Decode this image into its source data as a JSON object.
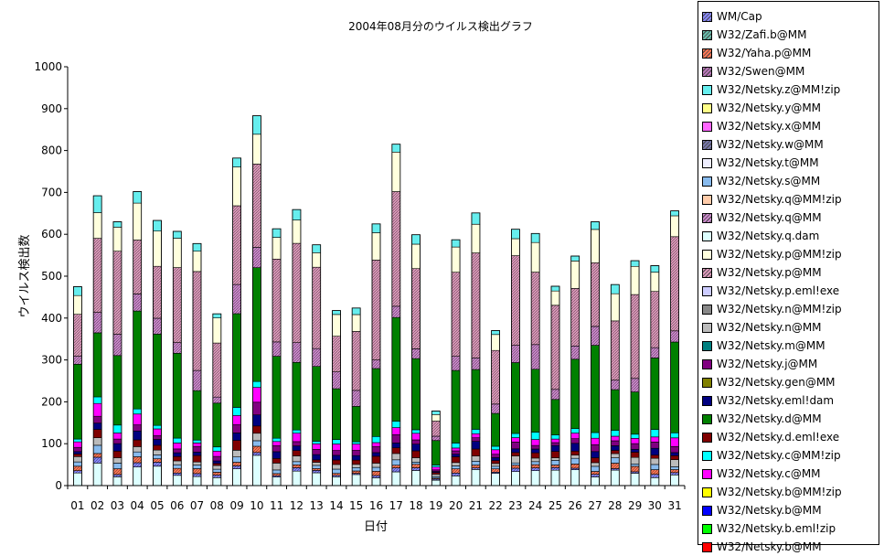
{
  "chart_data": {
    "type": "bar",
    "stacked": true,
    "title": "2004年08月分のウイルス検出グラフ",
    "xlabel": "日付",
    "ylabel": "ウイルス検出数",
    "ylim": [
      0,
      1000
    ],
    "yticks": [
      0,
      100,
      200,
      300,
      400,
      500,
      600,
      700,
      800,
      900,
      1000
    ],
    "categories": [
      "01",
      "02",
      "03",
      "04",
      "05",
      "06",
      "07",
      "08",
      "09",
      "10",
      "11",
      "12",
      "13",
      "14",
      "15",
      "16",
      "17",
      "18",
      "19",
      "20",
      "21",
      "22",
      "23",
      "24",
      "25",
      "26",
      "27",
      "28",
      "29",
      "30",
      "31"
    ],
    "totals": [
      475,
      692,
      630,
      702,
      633,
      607,
      578,
      410,
      782,
      883,
      613,
      659,
      575,
      418,
      424,
      625,
      815,
      599,
      178,
      587,
      651,
      370,
      612,
      602,
      476,
      548,
      630,
      480,
      537,
      525,
      656
    ],
    "legend_placement": "right",
    "legend": [
      {
        "name": "WM/Cap",
        "color": "#8888ff",
        "pattern": "hatch"
      },
      {
        "name": "W32/Zafi.b@MM",
        "color": "#66bbaa",
        "pattern": "hatch"
      },
      {
        "name": "W32/Yaha.p@MM",
        "color": "#ff7755",
        "pattern": "hatch"
      },
      {
        "name": "W32/Swen@MM",
        "color": "#bb77bb",
        "pattern": "hatch"
      },
      {
        "name": "W32/Netsky.z@MM!zip",
        "color": "#66eeee",
        "pattern": "solid"
      },
      {
        "name": "W32/Netsky.y@MM",
        "color": "#ffff88",
        "pattern": "solid"
      },
      {
        "name": "W32/Netsky.x@MM",
        "color": "#ff66ff",
        "pattern": "solid"
      },
      {
        "name": "W32/Netsky.w@MM",
        "color": "#7777aa",
        "pattern": "hatch"
      },
      {
        "name": "W32/Netsky.t@MM",
        "color": "#eeeeff",
        "pattern": "solid"
      },
      {
        "name": "W32/Netsky.s@MM",
        "color": "#88bbee",
        "pattern": "solid"
      },
      {
        "name": "W32/Netsky.q@MM!zip",
        "color": "#ffccaa",
        "pattern": "solid"
      },
      {
        "name": "W32/Netsky.q@MM",
        "color": "#cc88cc",
        "pattern": "hatch"
      },
      {
        "name": "W32/Netsky.q.dam",
        "color": "#ddffff",
        "pattern": "solid"
      },
      {
        "name": "W32/Netsky.p@MM!zip",
        "color": "#ffffdd",
        "pattern": "solid"
      },
      {
        "name": "W32/Netsky.p@MM",
        "color": "#dd99bb",
        "pattern": "hatch"
      },
      {
        "name": "W32/Netsky.p.eml!exe",
        "color": "#ccccff",
        "pattern": "solid"
      },
      {
        "name": "W32/Netsky.n@MM!zip",
        "color": "#888888",
        "pattern": "solid"
      },
      {
        "name": "W32/Netsky.n@MM",
        "color": "#bbbbbb",
        "pattern": "solid"
      },
      {
        "name": "W32/Netsky.m@MM",
        "color": "#008080",
        "pattern": "solid"
      },
      {
        "name": "W32/Netsky.j@MM",
        "color": "#800080",
        "pattern": "solid"
      },
      {
        "name": "W32/Netsky.gen@MM",
        "color": "#808000",
        "pattern": "solid"
      },
      {
        "name": "W32/Netsky.eml!dam",
        "color": "#000080",
        "pattern": "solid"
      },
      {
        "name": "W32/Netsky.d@MM",
        "color": "#008000",
        "pattern": "solid"
      },
      {
        "name": "W32/Netsky.d.eml!exe",
        "color": "#800000",
        "pattern": "solid"
      },
      {
        "name": "W32/Netsky.c@MM!zip",
        "color": "#00ffff",
        "pattern": "solid"
      },
      {
        "name": "W32/Netsky.c@MM",
        "color": "#ff00ff",
        "pattern": "solid"
      },
      {
        "name": "W32/Netsky.b@MM!zip",
        "color": "#ffff00",
        "pattern": "solid"
      },
      {
        "name": "W32/Netsky.b@MM",
        "color": "#0000ff",
        "pattern": "solid"
      },
      {
        "name": "W32/Netsky.b.eml!zip",
        "color": "#00ff00",
        "pattern": "solid"
      },
      {
        "name": "W32/Netsky.b@MM",
        "color": "#ff0000",
        "pattern": "solid"
      }
    ],
    "grid": false
  }
}
